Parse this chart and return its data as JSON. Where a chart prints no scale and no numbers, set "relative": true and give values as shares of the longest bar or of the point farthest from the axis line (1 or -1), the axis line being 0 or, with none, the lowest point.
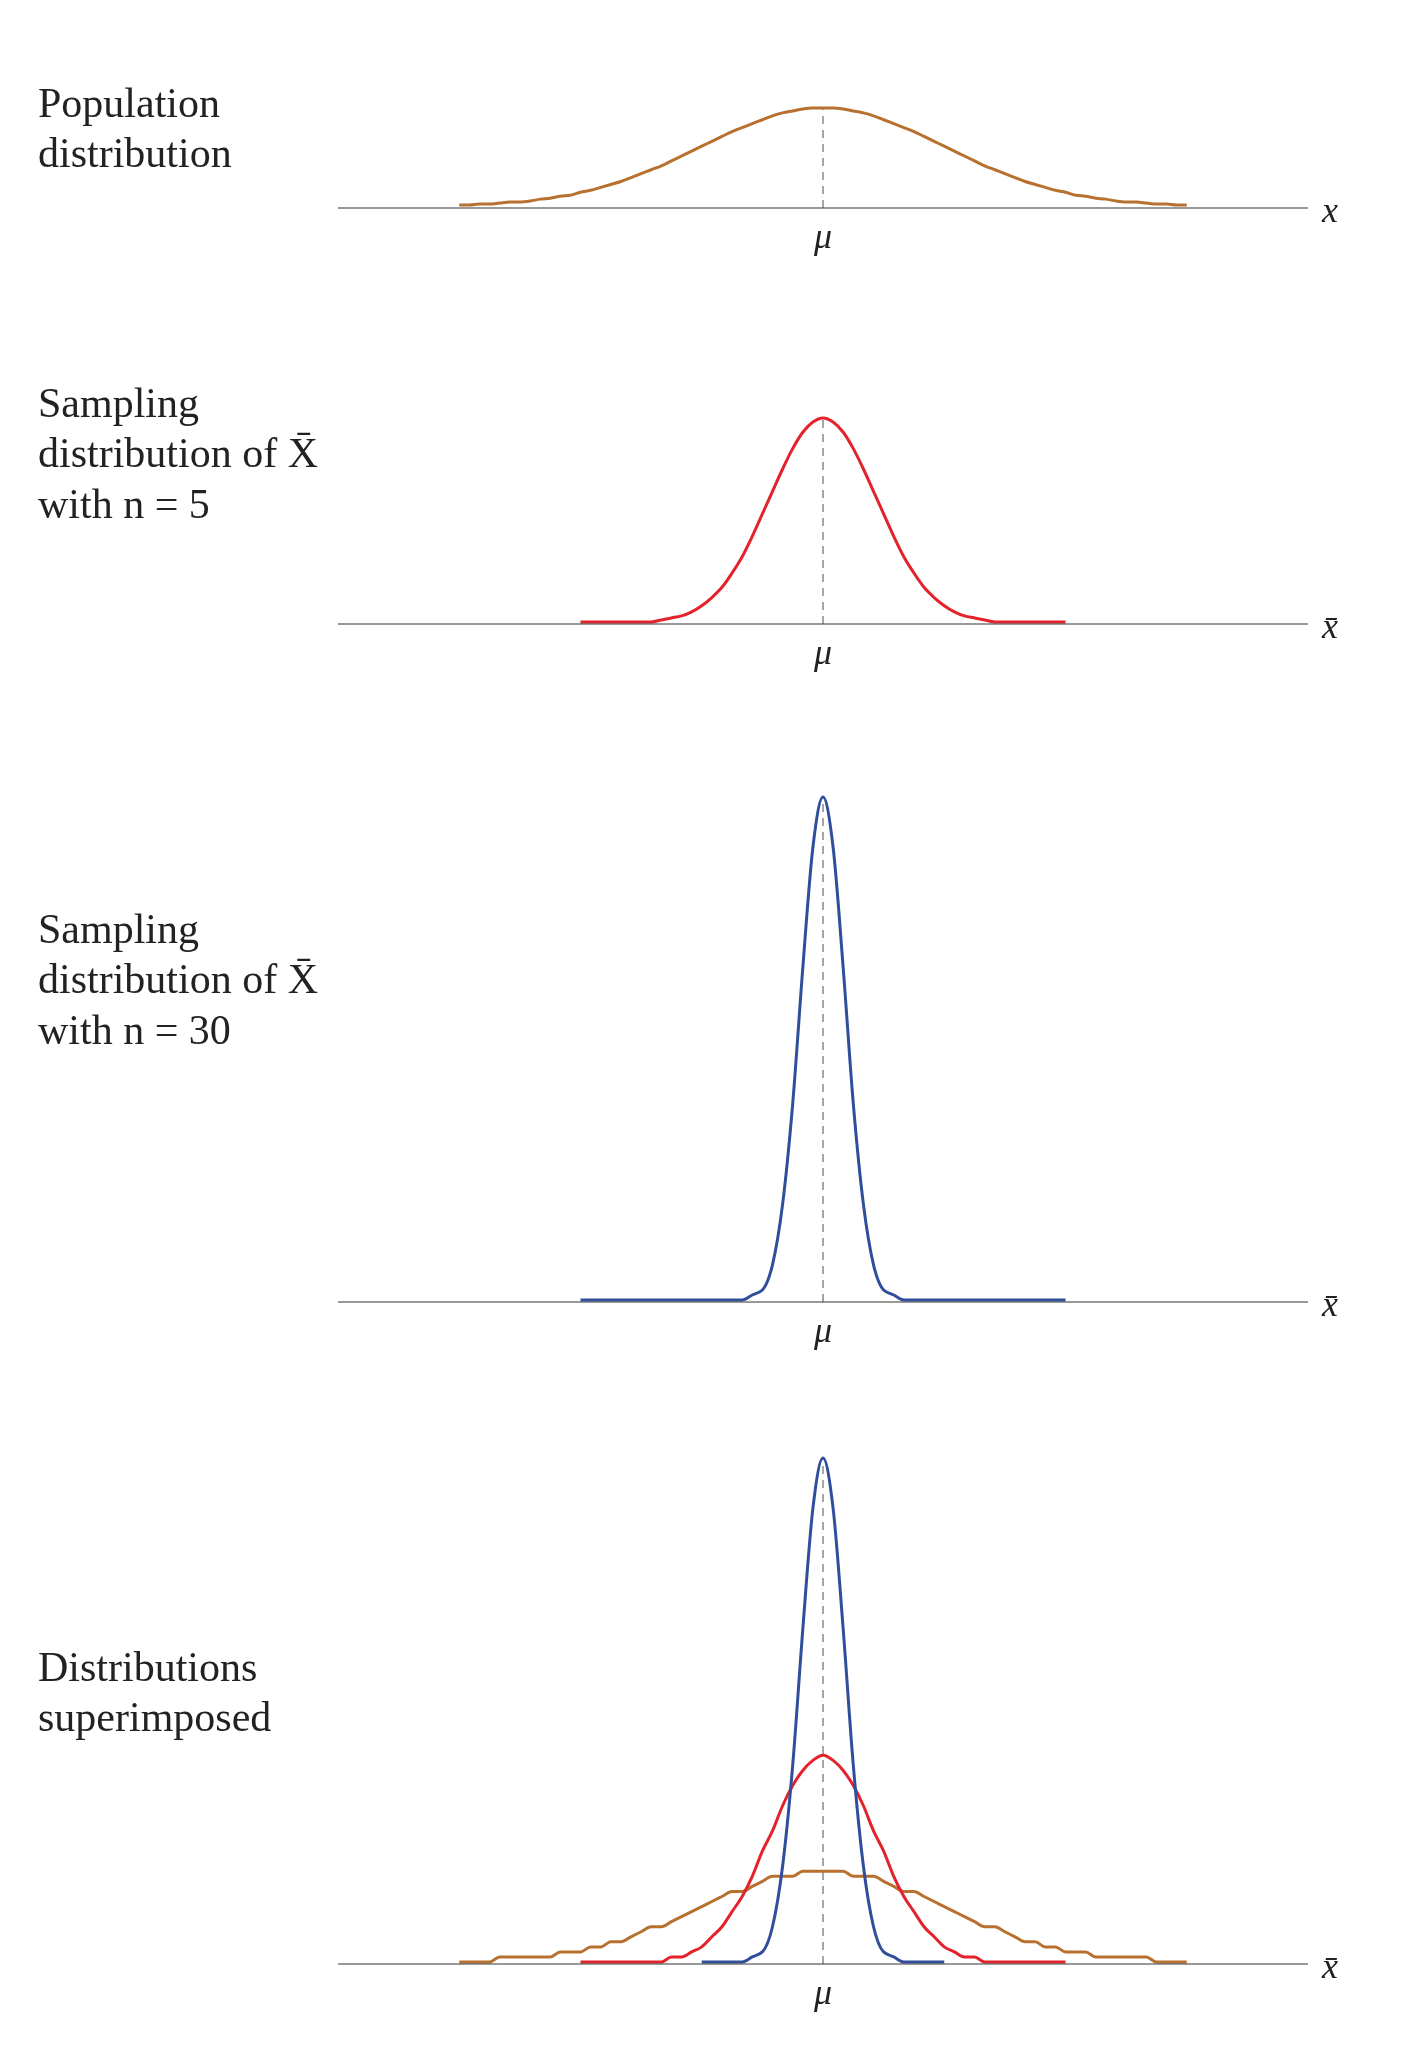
{
  "chart_data": [
    {
      "type": "line",
      "title": "Population distribution",
      "xlabel": "x",
      "relative": true,
      "categories": [
        null,
        null,
        null,
        null,
        null,
        null,
        null,
        null,
        null,
        null,
        null,
        null,
        null,
        null,
        null,
        null,
        null,
        null,
        null,
        null,
        null,
        null,
        null,
        null,
        null,
        null,
        null,
        null,
        null,
        null,
        null,
        null,
        null,
        null,
        null,
        null,
        null,
        null,
        null,
        null,
        null,
        null,
        null,
        null,
        null,
        null,
        null,
        null,
        null,
        null,
        null,
        null,
        null,
        null,
        null,
        null,
        null,
        null,
        null,
        null,
        null,
        null,
        null,
        null,
        null,
        null,
        null,
        null,
        null,
        null,
        null,
        null,
        null,
        null,
        null,
        null,
        null,
        null,
        null,
        null,
        null,
        null,
        null,
        null,
        null,
        null,
        null,
        null,
        null,
        null,
        null,
        null,
        null,
        null,
        null,
        null,
        null
      ],
      "ref_lines": [
        {
          "axis": "x",
          "label": "μ",
          "color": "#777777",
          "line_style": "dashed"
        }
      ],
      "series": [
        {
          "color": "#b8702e",
          "values": [
            null,
            null,
            null,
            null,
            null,
            null,
            null,
            null,
            null,
            null,
            null,
            null,
            0.01,
            0.01,
            0.02,
            0.02,
            0.03,
            0.04,
            0.04,
            0.05,
            0.07,
            0.08,
            0.1,
            0.11,
            0.14,
            0.16,
            0.19,
            0.22,
            0.25,
            0.29,
            0.33,
            0.37,
            0.41,
            0.46,
            0.51,
            0.56,
            0.61,
            0.66,
            0.71,
            0.76,
            0.8,
            0.84,
            0.88,
            0.92,
            0.95,
            0.97,
            0.99,
            1,
            1,
            1,
            0.99,
            0.97,
            0.95,
            0.92,
            0.88,
            0.84,
            0.8,
            0.76,
            0.71,
            0.66,
            0.61,
            0.56,
            0.51,
            0.46,
            0.41,
            0.37,
            0.33,
            0.29,
            0.25,
            0.22,
            0.19,
            0.16,
            0.14,
            0.11,
            0.1,
            0.08,
            0.07,
            0.05,
            0.04,
            0.04,
            0.03,
            0.02,
            0.02,
            0.01,
            0.01,
            null,
            null,
            null,
            null,
            null,
            null,
            null,
            null,
            null,
            null,
            null,
            null
          ]
        }
      ]
    },
    {
      "type": "line",
      "title": "Sampling distribution of X̄ with n = 5",
      "xlabel": "x̄",
      "relative": true,
      "categories": [
        null,
        null,
        null,
        null,
        null,
        null,
        null,
        null,
        null,
        null,
        null,
        null,
        null,
        null,
        null,
        null,
        null,
        null,
        null,
        null,
        null,
        null,
        null,
        null,
        null,
        null,
        null,
        null,
        null,
        null,
        null,
        null,
        null,
        null,
        null,
        null,
        null,
        null,
        null,
        null,
        null,
        null,
        null,
        null,
        null,
        null,
        null,
        null,
        null,
        null,
        null,
        null,
        null,
        null,
        null,
        null,
        null,
        null,
        null,
        null,
        null,
        null,
        null,
        null,
        null,
        null,
        null,
        null,
        null,
        null,
        null,
        null,
        null,
        null,
        null,
        null,
        null,
        null,
        null,
        null,
        null,
        null,
        null,
        null,
        null,
        null,
        null,
        null,
        null,
        null,
        null,
        null,
        null,
        null,
        null,
        null,
        null
      ],
      "ref_lines": [
        {
          "axis": "x",
          "label": "μ",
          "color": "#777777",
          "line_style": "dashed"
        }
      ],
      "series": [
        {
          "color": "#e3222b",
          "values": [
            null,
            null,
            null,
            null,
            null,
            null,
            null,
            null,
            null,
            null,
            null,
            null,
            null,
            null,
            null,
            null,
            null,
            null,
            null,
            null,
            null,
            null,
            null,
            null,
            0,
            0,
            0,
            0,
            0,
            0,
            0,
            0,
            0.01,
            0.02,
            0.03,
            0.05,
            0.08,
            0.12,
            0.17,
            0.24,
            0.32,
            0.42,
            0.53,
            0.64,
            0.75,
            0.85,
            0.93,
            0.98,
            1,
            0.98,
            0.93,
            0.85,
            0.75,
            0.64,
            0.53,
            0.42,
            0.32,
            0.24,
            0.17,
            0.12,
            0.08,
            0.05,
            0.03,
            0.02,
            0.01,
            0,
            0,
            0,
            0,
            0,
            0,
            0,
            0,
            null,
            null,
            null,
            null,
            null,
            null,
            null,
            null,
            null,
            null,
            null,
            null,
            null,
            null,
            null,
            null,
            null,
            null,
            null,
            null,
            null,
            null,
            null,
            null
          ]
        }
      ]
    },
    {
      "type": "line",
      "title": "Sampling distribution of X̄ with n = 30",
      "xlabel": "x̄",
      "relative": true,
      "categories": [
        null,
        null,
        null,
        null,
        null,
        null,
        null,
        null,
        null,
        null,
        null,
        null,
        null,
        null,
        null,
        null,
        null,
        null,
        null,
        null,
        null,
        null,
        null,
        null,
        null,
        null,
        null,
        null,
        null,
        null,
        null,
        null,
        null,
        null,
        null,
        null,
        null,
        null,
        null,
        null,
        null,
        null,
        null,
        null,
        null,
        null,
        null,
        null,
        null,
        null,
        null,
        null,
        null,
        null,
        null,
        null,
        null,
        null,
        null,
        null,
        null,
        null,
        null,
        null,
        null,
        null,
        null,
        null,
        null,
        null,
        null,
        null,
        null,
        null,
        null,
        null,
        null,
        null,
        null,
        null,
        null,
        null,
        null,
        null,
        null,
        null,
        null,
        null,
        null,
        null,
        null,
        null,
        null,
        null,
        null,
        null,
        null
      ],
      "ref_lines": [
        {
          "axis": "x",
          "label": "μ",
          "color": "#777777",
          "line_style": "dashed"
        }
      ],
      "series": [
        {
          "color": "#2f4f9c",
          "values": [
            null,
            null,
            null,
            null,
            null,
            null,
            null,
            null,
            null,
            null,
            null,
            null,
            null,
            null,
            null,
            null,
            null,
            null,
            null,
            null,
            null,
            null,
            null,
            null,
            0,
            0,
            0,
            0,
            0,
            0,
            0,
            0,
            0,
            0,
            0,
            0,
            0,
            0,
            0,
            0,
            0,
            0.01,
            0.02,
            0.07,
            0.19,
            0.39,
            0.66,
            0.9,
            1,
            0.9,
            0.66,
            0.39,
            0.19,
            0.07,
            0.02,
            0.01,
            0,
            0,
            0,
            0,
            0,
            0,
            0,
            0,
            0,
            0,
            0,
            0,
            0,
            0,
            0,
            0,
            0,
            null,
            null,
            null,
            null,
            null,
            null,
            null,
            null,
            null,
            null,
            null,
            null,
            null,
            null,
            null,
            null,
            null,
            null,
            null,
            null,
            null,
            null,
            null,
            null
          ]
        }
      ]
    },
    {
      "type": "line",
      "title": "Distributions superimposed",
      "xlabel": "x̄",
      "relative": true,
      "categories": [
        null,
        null,
        null,
        null,
        null,
        null,
        null,
        null,
        null,
        null,
        null,
        null,
        null,
        null,
        null,
        null,
        null,
        null,
        null,
        null,
        null,
        null,
        null,
        null,
        null,
        null,
        null,
        null,
        null,
        null,
        null,
        null,
        null,
        null,
        null,
        null,
        null,
        null,
        null,
        null,
        null,
        null,
        null,
        null,
        null,
        null,
        null,
        null,
        null,
        null,
        null,
        null,
        null,
        null,
        null,
        null,
        null,
        null,
        null,
        null,
        null,
        null,
        null,
        null,
        null,
        null,
        null,
        null,
        null,
        null,
        null,
        null,
        null,
        null,
        null,
        null,
        null,
        null,
        null,
        null,
        null,
        null,
        null,
        null,
        null,
        null,
        null,
        null,
        null,
        null,
        null,
        null,
        null,
        null,
        null,
        null,
        null
      ],
      "ref_lines": [
        {
          "axis": "x",
          "label": "μ",
          "color": "#777777",
          "line_style": "dashed"
        }
      ],
      "series": [
        {
          "color": "#b8702e",
          "values": [
            null,
            null,
            null,
            null,
            null,
            null,
            null,
            null,
            null,
            null,
            null,
            null,
            0,
            0,
            0,
            0,
            0.01,
            0.01,
            0.01,
            0.01,
            0.01,
            0.01,
            0.02,
            0.02,
            0.02,
            0.03,
            0.03,
            0.04,
            0.04,
            0.05,
            0.06,
            0.07,
            0.07,
            0.08,
            0.09,
            0.1,
            0.11,
            0.12,
            0.13,
            0.14,
            0.14,
            0.15,
            0.16,
            0.17,
            0.17,
            0.17,
            0.18,
            0.18,
            0.18,
            0.18,
            0.18,
            0.17,
            0.17,
            0.17,
            0.16,
            0.15,
            0.14,
            0.14,
            0.13,
            0.12,
            0.11,
            0.1,
            0.09,
            0.08,
            0.07,
            0.07,
            0.06,
            0.05,
            0.04,
            0.04,
            0.03,
            0.03,
            0.02,
            0.02,
            0.02,
            0.01,
            0.01,
            0.01,
            0.01,
            0.01,
            0.01,
            0,
            0,
            0,
            0,
            null,
            null,
            null,
            null,
            null,
            null,
            null,
            null,
            null,
            null,
            null,
            null
          ]
        },
        {
          "color": "#e3222b",
          "values": [
            null,
            null,
            null,
            null,
            null,
            null,
            null,
            null,
            null,
            null,
            null,
            null,
            null,
            null,
            null,
            null,
            null,
            null,
            null,
            null,
            null,
            null,
            null,
            null,
            0,
            0,
            0,
            0,
            0,
            0,
            0,
            0,
            0,
            0.01,
            0.01,
            0.02,
            0.03,
            0.05,
            0.07,
            0.1,
            0.13,
            0.17,
            0.22,
            0.26,
            0.31,
            0.35,
            0.38,
            0.4,
            0.41,
            0.4,
            0.38,
            0.35,
            0.31,
            0.26,
            0.22,
            0.17,
            0.13,
            0.1,
            0.07,
            0.05,
            0.03,
            0.02,
            0.01,
            0.01,
            0,
            0,
            0,
            0,
            0,
            0,
            0,
            0,
            0,
            null,
            null,
            null,
            null,
            null,
            null,
            null,
            null,
            null,
            null,
            null,
            null,
            null,
            null,
            null,
            null,
            null,
            null,
            null,
            null,
            null,
            null,
            null,
            null
          ]
        },
        {
          "color": "#2f4f9c",
          "values": [
            null,
            null,
            null,
            null,
            null,
            null,
            null,
            null,
            null,
            null,
            null,
            null,
            null,
            null,
            null,
            null,
            null,
            null,
            null,
            null,
            null,
            null,
            null,
            null,
            null,
            null,
            null,
            null,
            null,
            null,
            null,
            null,
            null,
            null,
            null,
            null,
            0,
            0,
            0,
            0,
            0,
            0.01,
            0.02,
            0.07,
            0.19,
            0.39,
            0.66,
            0.9,
            1,
            0.9,
            0.66,
            0.39,
            0.19,
            0.07,
            0.02,
            0.01,
            0,
            0,
            0,
            0,
            0,
            null,
            null,
            null,
            null,
            null,
            null,
            null,
            null,
            null,
            null,
            null,
            null,
            null,
            null,
            null,
            null,
            null,
            null,
            null,
            null,
            null,
            null,
            null,
            null,
            null,
            null,
            null,
            null,
            null,
            null,
            null,
            null,
            null,
            null,
            null,
            null
          ]
        }
      ]
    }
  ]
}
